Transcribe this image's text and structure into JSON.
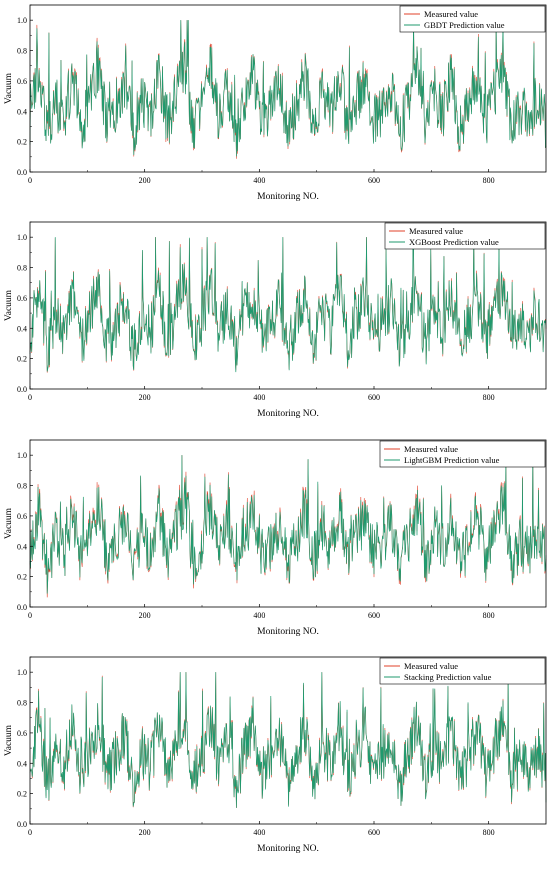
{
  "figure": {
    "panels": [
      {
        "legend_measured": "Measured value",
        "legend_pred": "GBDT Prediction value",
        "ylabel": "Vacuum",
        "xlabel": "Monitoring NO."
      },
      {
        "legend_measured": "Measured value",
        "legend_pred": "XGBoost Prediction value",
        "ylabel": "Vacuum",
        "xlabel": "Monitoring NO."
      },
      {
        "legend_measured": "Measured value",
        "legend_pred": "LightGBM Prediction value",
        "ylabel": "Vacuum",
        "xlabel": "Monitoring NO."
      },
      {
        "legend_measured": "Measured value",
        "legend_pred": "Stacking Prediction value",
        "ylabel": "Vacuum",
        "xlabel": "Monitoring NO."
      }
    ]
  },
  "colors": {
    "measured": "#e0402a",
    "predicted": "#1f9a6e"
  },
  "chart_data": [
    {
      "type": "line",
      "xlabel": "Monitoring NO.",
      "ylabel": "Vacuum",
      "xlim": [
        0,
        900
      ],
      "ylim": [
        0,
        1.1
      ],
      "xticks": [
        0,
        200,
        400,
        600,
        800
      ],
      "yticks": [
        0.0,
        0.2,
        0.4,
        0.6,
        0.8,
        1.0
      ],
      "legend": "top-right",
      "series": [
        {
          "name": "Measured value",
          "color": "#e0402a"
        },
        {
          "name": "GBDT Prediction value",
          "color": "#1f9a6e"
        }
      ],
      "x": [
        0,
        15,
        30,
        45,
        60,
        75,
        90,
        105,
        120,
        135,
        150,
        165,
        180,
        195,
        210,
        225,
        240,
        255,
        270,
        285,
        300,
        315,
        330,
        345,
        360,
        375,
        390,
        405,
        420,
        435,
        450,
        465,
        480,
        495,
        510,
        525,
        540,
        555,
        570,
        585,
        600,
        615,
        630,
        645,
        660,
        675,
        690,
        705,
        720,
        735,
        750,
        765,
        780,
        795,
        810,
        825,
        840,
        855,
        870,
        885,
        900
      ],
      "measured": [
        0.28,
        0.95,
        0.12,
        0.52,
        0.3,
        0.85,
        0.18,
        0.6,
        0.92,
        0.22,
        0.48,
        0.78,
        0.15,
        0.55,
        0.35,
        0.88,
        0.25,
        0.62,
        0.98,
        0.2,
        0.45,
        0.95,
        0.3,
        0.72,
        0.15,
        0.58,
        0.82,
        0.28,
        0.4,
        0.75,
        0.12,
        0.5,
        0.86,
        0.22,
        0.65,
        0.35,
        0.9,
        0.18,
        0.55,
        0.8,
        0.25,
        0.45,
        0.7,
        0.12,
        0.52,
        0.88,
        0.2,
        0.62,
        0.35,
        0.85,
        0.15,
        0.5,
        0.78,
        0.28,
        0.6,
        0.92,
        0.22,
        0.45,
        0.3,
        0.55,
        0.25
      ],
      "predicted": [
        0.27,
        0.93,
        0.13,
        0.51,
        0.31,
        0.83,
        0.19,
        0.59,
        0.9,
        0.23,
        0.47,
        0.76,
        0.16,
        0.54,
        0.36,
        0.86,
        0.26,
        0.61,
        0.96,
        0.21,
        0.44,
        0.93,
        0.31,
        0.7,
        0.16,
        0.57,
        0.8,
        0.29,
        0.41,
        0.73,
        0.13,
        0.49,
        0.84,
        0.23,
        0.64,
        0.36,
        0.88,
        0.19,
        0.54,
        0.78,
        0.26,
        0.44,
        0.69,
        0.13,
        0.51,
        0.86,
        0.21,
        0.61,
        0.36,
        0.83,
        0.16,
        0.49,
        0.76,
        0.29,
        0.59,
        0.9,
        0.23,
        0.44,
        0.31,
        0.54,
        0.26
      ]
    },
    {
      "type": "line",
      "xlabel": "Monitoring NO.",
      "ylabel": "Vacuum",
      "xlim": [
        0,
        900
      ],
      "ylim": [
        0,
        1.1
      ],
      "xticks": [
        0,
        200,
        400,
        600,
        800
      ],
      "yticks": [
        0.0,
        0.2,
        0.4,
        0.6,
        0.8,
        1.0
      ],
      "legend": "top-right",
      "series": [
        {
          "name": "Measured value",
          "color": "#e0402a"
        },
        {
          "name": "XGBoost Prediction value",
          "color": "#1f9a6e"
        }
      ],
      "x": [
        0,
        15,
        30,
        45,
        60,
        75,
        90,
        105,
        120,
        135,
        150,
        165,
        180,
        195,
        210,
        225,
        240,
        255,
        270,
        285,
        300,
        315,
        330,
        345,
        360,
        375,
        390,
        405,
        420,
        435,
        450,
        465,
        480,
        495,
        510,
        525,
        540,
        555,
        570,
        585,
        600,
        615,
        630,
        645,
        660,
        675,
        690,
        705,
        720,
        735,
        750,
        765,
        780,
        795,
        810,
        825,
        840,
        855,
        870,
        885,
        900
      ],
      "measured": [
        0.28,
        0.95,
        0.12,
        0.52,
        0.3,
        0.85,
        0.18,
        0.6,
        0.92,
        0.22,
        0.48,
        0.78,
        0.15,
        0.55,
        0.35,
        0.88,
        0.25,
        0.62,
        0.98,
        0.2,
        0.45,
        0.95,
        0.3,
        0.72,
        0.15,
        0.58,
        0.82,
        0.28,
        0.4,
        0.75,
        0.12,
        0.5,
        0.86,
        0.22,
        0.65,
        0.35,
        0.9,
        0.18,
        0.55,
        0.8,
        0.25,
        0.45,
        0.7,
        0.12,
        0.52,
        0.88,
        0.2,
        0.62,
        0.35,
        0.85,
        0.15,
        0.5,
        0.78,
        0.28,
        0.6,
        0.92,
        0.22,
        0.45,
        0.3,
        0.55,
        0.25
      ],
      "predicted": [
        0.27,
        0.94,
        0.13,
        0.51,
        0.3,
        0.84,
        0.18,
        0.59,
        0.91,
        0.22,
        0.47,
        0.77,
        0.15,
        0.54,
        0.35,
        0.87,
        0.25,
        0.61,
        0.97,
        0.2,
        0.44,
        0.94,
        0.3,
        0.71,
        0.15,
        0.57,
        0.81,
        0.28,
        0.4,
        0.74,
        0.12,
        0.49,
        0.85,
        0.22,
        0.64,
        0.35,
        0.89,
        0.18,
        0.54,
        0.79,
        0.25,
        0.44,
        0.69,
        0.12,
        0.51,
        0.87,
        0.2,
        0.61,
        0.35,
        0.84,
        0.15,
        0.49,
        0.77,
        0.28,
        0.59,
        0.91,
        0.22,
        0.44,
        0.3,
        0.54,
        0.25
      ]
    },
    {
      "type": "line",
      "xlabel": "Monitoring NO.",
      "ylabel": "Vacuum",
      "xlim": [
        0,
        900
      ],
      "ylim": [
        0,
        1.1
      ],
      "xticks": [
        0,
        200,
        400,
        600,
        800
      ],
      "yticks": [
        0.0,
        0.2,
        0.4,
        0.6,
        0.8,
        1.0
      ],
      "legend": "top-right",
      "series": [
        {
          "name": "Measured value",
          "color": "#e0402a"
        },
        {
          "name": "LightGBM Prediction value",
          "color": "#1f9a6e"
        }
      ],
      "x": [
        0,
        15,
        30,
        45,
        60,
        75,
        90,
        105,
        120,
        135,
        150,
        165,
        180,
        195,
        210,
        225,
        240,
        255,
        270,
        285,
        300,
        315,
        330,
        345,
        360,
        375,
        390,
        405,
        420,
        435,
        450,
        465,
        480,
        495,
        510,
        525,
        540,
        555,
        570,
        585,
        600,
        615,
        630,
        645,
        660,
        675,
        690,
        705,
        720,
        735,
        750,
        765,
        780,
        795,
        810,
        825,
        840,
        855,
        870,
        885,
        900
      ],
      "measured": [
        0.28,
        0.95,
        0.12,
        0.52,
        0.3,
        0.85,
        0.18,
        0.6,
        0.92,
        0.22,
        0.48,
        0.78,
        0.15,
        0.55,
        0.35,
        0.88,
        0.25,
        0.62,
        0.98,
        0.2,
        0.45,
        0.95,
        0.3,
        0.72,
        0.15,
        0.58,
        0.82,
        0.28,
        0.4,
        0.75,
        0.12,
        0.5,
        0.86,
        0.22,
        0.65,
        0.35,
        0.9,
        0.18,
        0.55,
        0.8,
        0.25,
        0.45,
        0.7,
        0.12,
        0.52,
        0.88,
        0.2,
        0.62,
        0.35,
        0.85,
        0.15,
        0.5,
        0.78,
        0.28,
        0.6,
        0.92,
        0.22,
        0.45,
        0.3,
        0.55,
        0.25
      ],
      "predicted": [
        0.3,
        0.9,
        0.15,
        0.5,
        0.32,
        0.8,
        0.21,
        0.57,
        0.87,
        0.25,
        0.46,
        0.74,
        0.18,
        0.53,
        0.37,
        0.83,
        0.28,
        0.6,
        0.92,
        0.23,
        0.43,
        0.9,
        0.32,
        0.68,
        0.18,
        0.56,
        0.78,
        0.3,
        0.41,
        0.71,
        0.15,
        0.48,
        0.82,
        0.25,
        0.62,
        0.37,
        0.85,
        0.21,
        0.53,
        0.76,
        0.28,
        0.43,
        0.67,
        0.15,
        0.5,
        0.84,
        0.23,
        0.6,
        0.37,
        0.81,
        0.18,
        0.48,
        0.74,
        0.3,
        0.58,
        0.87,
        0.25,
        0.43,
        0.32,
        0.53,
        0.27
      ]
    },
    {
      "type": "line",
      "xlabel": "Monitoring NO.",
      "ylabel": "Vacuum",
      "xlim": [
        0,
        900
      ],
      "ylim": [
        0,
        1.1
      ],
      "xticks": [
        0,
        200,
        400,
        600,
        800
      ],
      "yticks": [
        0.0,
        0.2,
        0.4,
        0.6,
        0.8,
        1.0
      ],
      "legend": "top-right",
      "series": [
        {
          "name": "Measured value",
          "color": "#e0402a"
        },
        {
          "name": "Stacking Prediction value",
          "color": "#1f9a6e"
        }
      ],
      "x": [
        0,
        15,
        30,
        45,
        60,
        75,
        90,
        105,
        120,
        135,
        150,
        165,
        180,
        195,
        210,
        225,
        240,
        255,
        270,
        285,
        300,
        315,
        330,
        345,
        360,
        375,
        390,
        405,
        420,
        435,
        450,
        465,
        480,
        495,
        510,
        525,
        540,
        555,
        570,
        585,
        600,
        615,
        630,
        645,
        660,
        675,
        690,
        705,
        720,
        735,
        750,
        765,
        780,
        795,
        810,
        825,
        840,
        855,
        870,
        885,
        900
      ],
      "measured": [
        0.28,
        0.95,
        0.12,
        0.52,
        0.3,
        0.85,
        0.18,
        0.6,
        0.92,
        0.22,
        0.48,
        0.78,
        0.15,
        0.55,
        0.35,
        0.88,
        0.25,
        0.62,
        0.98,
        0.2,
        0.45,
        0.95,
        0.3,
        0.72,
        0.15,
        0.58,
        0.82,
        0.28,
        0.4,
        0.75,
        0.12,
        0.5,
        0.86,
        0.22,
        0.65,
        0.35,
        0.9,
        0.18,
        0.55,
        0.8,
        0.25,
        0.45,
        0.7,
        0.12,
        0.52,
        0.88,
        0.2,
        0.62,
        0.35,
        0.85,
        0.15,
        0.5,
        0.78,
        0.28,
        0.6,
        0.92,
        0.22,
        0.45,
        0.3,
        0.55,
        0.25
      ],
      "predicted": [
        0.28,
        0.95,
        0.12,
        0.52,
        0.3,
        0.85,
        0.18,
        0.6,
        0.92,
        0.22,
        0.48,
        0.78,
        0.15,
        0.55,
        0.35,
        0.88,
        0.25,
        0.62,
        0.98,
        0.2,
        0.45,
        0.95,
        0.3,
        0.72,
        0.15,
        0.58,
        0.82,
        0.28,
        0.4,
        0.75,
        0.12,
        0.5,
        0.86,
        0.22,
        0.65,
        0.35,
        0.9,
        0.18,
        0.55,
        0.8,
        0.25,
        0.45,
        0.7,
        0.12,
        0.52,
        0.88,
        0.2,
        0.62,
        0.35,
        0.85,
        0.15,
        0.5,
        0.78,
        0.28,
        0.6,
        0.92,
        0.22,
        0.45,
        0.3,
        0.55,
        0.25
      ]
    }
  ]
}
